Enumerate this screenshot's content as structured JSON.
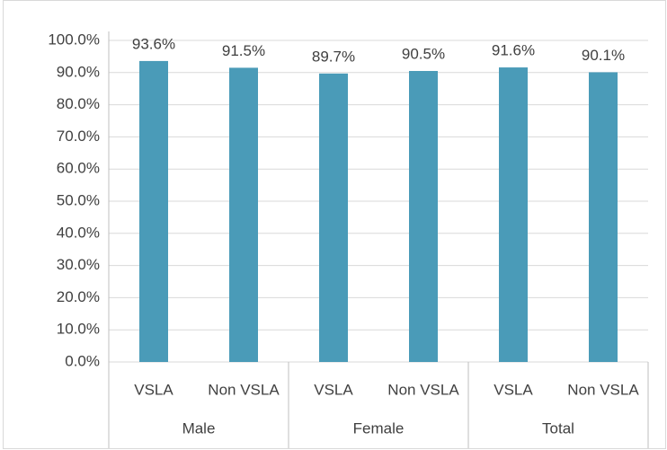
{
  "chart_data": {
    "type": "bar",
    "groups": [
      {
        "name": "Male",
        "categories": [
          "VSLA",
          "Non VSLA"
        ]
      },
      {
        "name": "Female",
        "categories": [
          "VSLA",
          "Non VSLA"
        ]
      },
      {
        "name": "Total",
        "categories": [
          "VSLA",
          "Non VSLA"
        ]
      }
    ],
    "values": [
      93.6,
      91.5,
      89.7,
      90.5,
      91.6,
      90.1
    ],
    "value_labels": [
      "93.6%",
      "91.5%",
      "89.7%",
      "90.5%",
      "91.6%",
      "90.1%"
    ],
    "color": "#4a9bb8",
    "ylim": [
      0,
      100
    ],
    "yticks": [
      {
        "value": 0,
        "label": "0.0%"
      },
      {
        "value": 10,
        "label": "10.0%"
      },
      {
        "value": 20,
        "label": "20.0%"
      },
      {
        "value": 30,
        "label": "30.0%"
      },
      {
        "value": 40,
        "label": "40.0%"
      },
      {
        "value": 50,
        "label": "50.0%"
      },
      {
        "value": 60,
        "label": "60.0%"
      },
      {
        "value": 70,
        "label": "70.0%"
      },
      {
        "value": 80,
        "label": "80.0%"
      },
      {
        "value": 90,
        "label": "90.0%"
      },
      {
        "value": 100,
        "label": "100.0%"
      }
    ],
    "grid": true
  }
}
